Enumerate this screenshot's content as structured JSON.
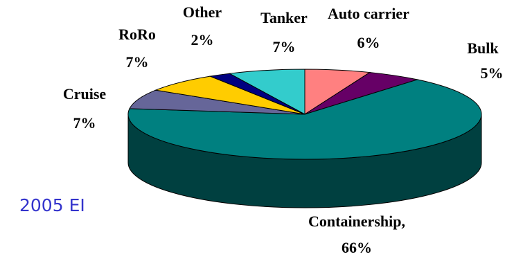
{
  "chart_data": {
    "type": "pie3d",
    "annotation": "2005 EI",
    "categories": [
      "Auto carrier",
      "Bulk",
      "Containership,",
      "Cruise",
      "RoRo",
      "Other",
      "Tanker"
    ],
    "values": [
      6,
      5,
      66,
      7,
      7,
      2,
      7
    ],
    "value_labels": [
      "6%",
      "5%",
      "66%",
      "7%",
      "7%",
      "2%",
      "7%"
    ],
    "colors": [
      "#ff8080",
      "#660066",
      "#008080",
      "#666699",
      "#ffcc00",
      "#000080",
      "#33cccc"
    ]
  }
}
